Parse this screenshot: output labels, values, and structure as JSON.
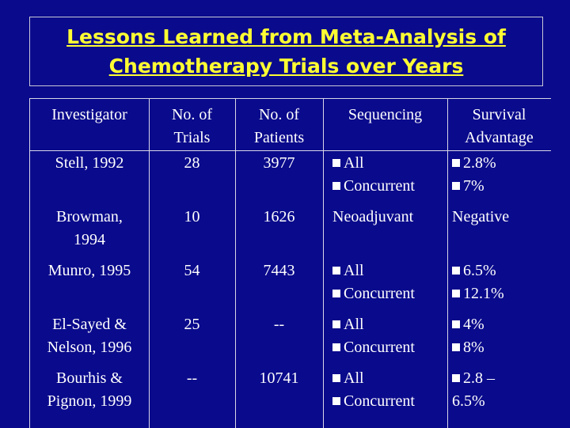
{
  "title": {
    "line1": "Lessons Learned from Meta-Analysis of",
    "line2": "Chemotherapy Trials over Years"
  },
  "headers": {
    "investigator": "Investigator",
    "trials": [
      "No. of",
      "Trials"
    ],
    "patients": [
      "No. of",
      "Patients"
    ],
    "sequencing": "Sequencing",
    "survival": [
      "Survival",
      "Advantage"
    ]
  },
  "rows": [
    {
      "investigator": [
        "Stell, 1992"
      ],
      "trials": "28",
      "patients": "3977",
      "sequencing": [
        {
          "bullet": true,
          "text": "All"
        },
        {
          "bullet": true,
          "text": "Concurrent"
        }
      ],
      "survival": [
        {
          "bullet": true,
          "text": "2.8%"
        },
        {
          "bullet": true,
          "text": "7%"
        }
      ]
    },
    {
      "investigator": [
        "Browman,",
        "1994"
      ],
      "trials": "10",
      "patients": "1626",
      "sequencing": [
        {
          "bullet": false,
          "text": "Neoadjuvant"
        }
      ],
      "survival": [
        {
          "bullet": false,
          "text": "Negative"
        }
      ]
    },
    {
      "investigator": [
        "Munro, 1995"
      ],
      "trials": "54",
      "patients": "7443",
      "sequencing": [
        {
          "bullet": true,
          "text": "All"
        },
        {
          "bullet": true,
          "text": "Concurrent"
        }
      ],
      "survival": [
        {
          "bullet": true,
          "text": "6.5%"
        },
        {
          "bullet": true,
          "text": "12.1%"
        }
      ]
    },
    {
      "investigator": [
        "El-Sayed &",
        "Nelson, 1996"
      ],
      "trials": "25",
      "patients": "--",
      "sequencing": [
        {
          "bullet": true,
          "text": "All"
        },
        {
          "bullet": true,
          "text": "Concurrent"
        }
      ],
      "survival": [
        {
          "bullet": true,
          "text": "4%"
        },
        {
          "bullet": true,
          "text": "8%"
        }
      ]
    },
    {
      "investigator": [
        "Bourhis &",
        "Pignon, 1999"
      ],
      "trials": "--",
      "patients": "10741",
      "sequencing": [
        {
          "bullet": true,
          "text": "All"
        },
        {
          "bullet": true,
          "text": "Concurrent"
        }
      ],
      "survival": [
        {
          "bullet": true,
          "text": "2.8 –"
        },
        {
          "bullet": false,
          "text": "6.5%"
        }
      ]
    }
  ]
}
